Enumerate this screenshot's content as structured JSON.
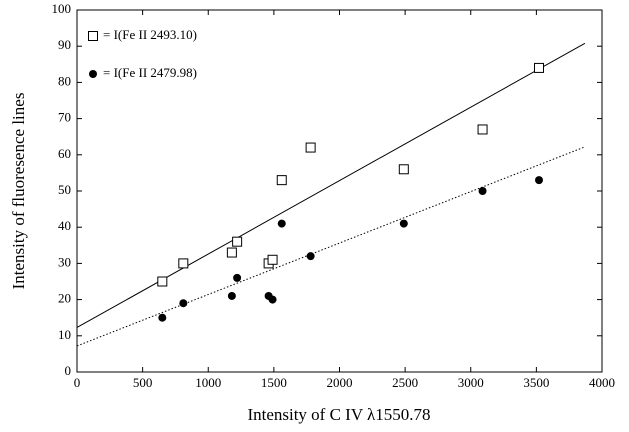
{
  "chart_data": {
    "type": "scatter",
    "x_label": "Intensity of C IV λ1550.78",
    "y_label": "Intensity of fluoresence lines",
    "xlim": [
      0,
      4000
    ],
    "ylim": [
      0,
      100
    ],
    "xticks": [
      0,
      500,
      1000,
      1500,
      2000,
      2500,
      3000,
      3500,
      4000
    ],
    "yticks": [
      0,
      10,
      20,
      30,
      40,
      50,
      60,
      70,
      80,
      90,
      100
    ],
    "legend": "upper-left",
    "series": [
      {
        "name": "= I(Fe II 2493.10)",
        "marker": "open-square",
        "color": "#000000",
        "x": [
          650,
          810,
          1180,
          1220,
          1460,
          1490,
          1560,
          1780,
          2490,
          3090,
          3520
        ],
        "values": [
          25,
          30,
          33,
          36,
          30,
          31,
          53,
          62,
          56,
          67,
          84
        ],
        "fit": {
          "x": [
            0,
            3870
          ],
          "values": [
            12.3,
            90.8
          ],
          "style": "solid"
        }
      },
      {
        "name": "= I(Fe II 2479.98)",
        "marker": "filled-circle",
        "color": "#000000",
        "x": [
          650,
          810,
          1180,
          1220,
          1460,
          1490,
          1560,
          1780,
          2490,
          3090,
          3520
        ],
        "values": [
          15,
          19,
          21,
          26,
          21,
          20,
          41,
          32,
          41,
          50,
          53
        ],
        "fit": {
          "x": [
            0,
            3870
          ],
          "values": [
            7.2,
            62.2
          ],
          "style": "dotted"
        }
      }
    ]
  }
}
